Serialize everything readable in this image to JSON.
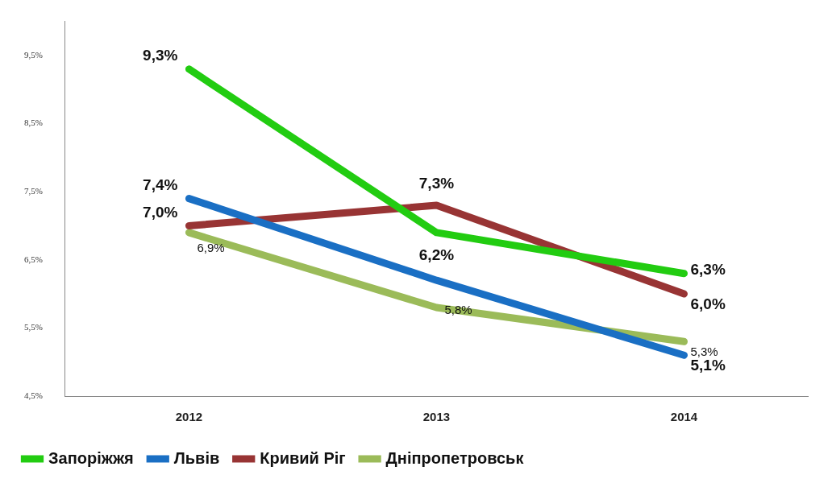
{
  "chart_data": {
    "type": "line",
    "categories": [
      "2012",
      "2013",
      "2014"
    ],
    "series": [
      {
        "name": "Запоріжжя",
        "color": "#22cc11",
        "values": [
          9.3,
          6.9,
          6.3
        ],
        "value_labels": [
          "9,3%",
          null,
          "6,3%"
        ]
      },
      {
        "name": "Львів",
        "color": "#1a6fc4",
        "values": [
          7.4,
          6.2,
          5.1
        ],
        "value_labels": [
          "7,4%",
          "6,2%",
          "5,1%"
        ]
      },
      {
        "name": "Кривий Ріг",
        "color": "#983434",
        "values": [
          7.0,
          7.3,
          6.0
        ],
        "value_labels": [
          "7,0%",
          "7,3%",
          "6,0%"
        ]
      },
      {
        "name": "Дніпропетровськ",
        "color": "#9bbb59",
        "values": [
          6.9,
          5.8,
          5.3
        ],
        "value_labels": [
          "6,9%",
          "5,8%",
          "5,3%"
        ]
      }
    ],
    "ylim": [
      4.5,
      10
    ],
    "yticks": [
      {
        "value": 4.5,
        "label": "4,5%"
      },
      {
        "value": 5.5,
        "label": "5,5%"
      },
      {
        "value": 6.5,
        "label": "6,5%"
      },
      {
        "value": 7.5,
        "label": "7,5%"
      },
      {
        "value": 8.5,
        "label": "8,5%"
      },
      {
        "value": 9.5,
        "label": "9,5%"
      }
    ],
    "grid": false,
    "legend": "bottom",
    "marker": "none",
    "line_style": "solid"
  }
}
